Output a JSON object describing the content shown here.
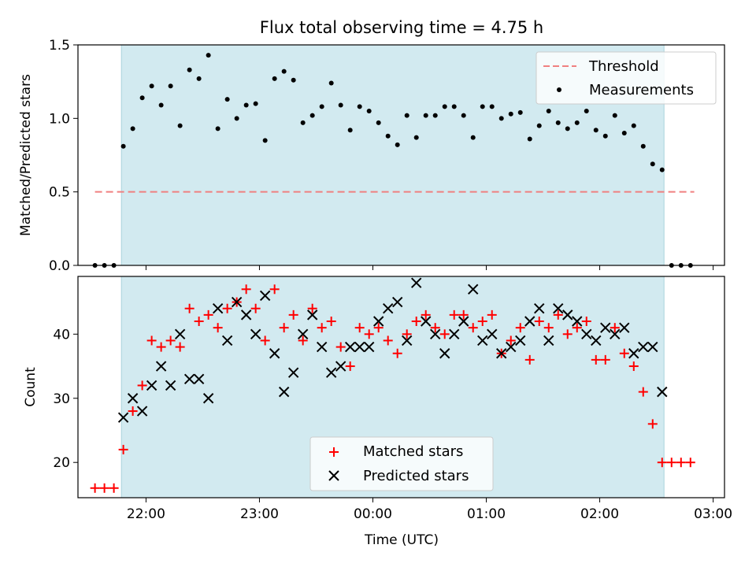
{
  "title": "Flux total observing time = 4.75 h",
  "xlabel": "Time (UTC)",
  "x_ticks": [
    "22:00",
    "23:00",
    "00:00",
    "01:00",
    "02:00",
    "03:00"
  ],
  "colors": {
    "shade": "#d2eaf0",
    "threshold": "#f08080",
    "matched": "#ff0000",
    "predicted": "#000000"
  },
  "chart_data": [
    {
      "type": "scatter",
      "panel": "top",
      "ylabel": "Matched/Predicted stars",
      "ylim": [
        0,
        1.5
      ],
      "y_ticks": [
        "0.0",
        "0.5",
        "1.0",
        "1.5"
      ],
      "x_range_hours": [
        21.4,
        27.1
      ],
      "shaded_span": [
        "21:47",
        "02:34"
      ],
      "legend_position": "upper right",
      "threshold": {
        "name": "Threshold",
        "value": 0.5,
        "x_start": "21:33",
        "x_end": "02:50",
        "style": "dashed"
      },
      "series": [
        {
          "name": "Measurements",
          "x": [
            "21:33",
            "21:38",
            "21:43",
            "21:48",
            "21:53",
            "21:58",
            "22:03",
            "22:08",
            "22:13",
            "22:18",
            "22:23",
            "22:28",
            "22:33",
            "22:38",
            "22:43",
            "22:48",
            "22:53",
            "22:58",
            "23:03",
            "23:08",
            "23:13",
            "23:18",
            "23:23",
            "23:28",
            "23:33",
            "23:38",
            "23:43",
            "23:48",
            "23:53",
            "23:58",
            "00:03",
            "00:08",
            "00:13",
            "00:18",
            "00:23",
            "00:28",
            "00:33",
            "00:38",
            "00:43",
            "00:48",
            "00:53",
            "00:58",
            "01:03",
            "01:08",
            "01:13",
            "01:18",
            "01:23",
            "01:28",
            "01:33",
            "01:38",
            "01:43",
            "01:48",
            "01:53",
            "01:58",
            "02:03",
            "02:08",
            "02:13",
            "02:18",
            "02:23",
            "02:28",
            "02:33",
            "02:38",
            "02:43",
            "02:48"
          ],
          "y": [
            0,
            0,
            0,
            0.81,
            0.93,
            1.14,
            1.22,
            1.09,
            1.22,
            0.95,
            1.33,
            1.27,
            1.43,
            0.93,
            1.13,
            1.0,
            1.09,
            1.1,
            0.85,
            1.27,
            1.32,
            1.26,
            0.97,
            1.02,
            1.08,
            1.24,
            1.09,
            0.92,
            1.08,
            1.05,
            0.97,
            0.88,
            0.82,
            1.02,
            0.87,
            1.02,
            1.02,
            1.08,
            1.08,
            1.02,
            0.87,
            1.08,
            1.08,
            1.0,
            1.03,
            1.04,
            0.86,
            0.95,
            1.05,
            0.97,
            0.93,
            0.97,
            1.05,
            0.92,
            0.88,
            1.02,
            0.9,
            0.95,
            0.81,
            0.69,
            0.65,
            0,
            0,
            0
          ]
        }
      ]
    },
    {
      "type": "scatter",
      "panel": "bottom",
      "ylabel": "Count",
      "ylim": [
        14.5,
        49
      ],
      "y_ticks": [
        "20",
        "30",
        "40"
      ],
      "x_range_hours": [
        21.4,
        27.1
      ],
      "shaded_span": [
        "21:47",
        "02:34"
      ],
      "legend_position": "lower center",
      "series": [
        {
          "name": "Matched stars",
          "marker": "+",
          "x": [
            "21:33",
            "21:38",
            "21:43",
            "21:48",
            "21:53",
            "21:58",
            "22:03",
            "22:08",
            "22:13",
            "22:18",
            "22:23",
            "22:28",
            "22:33",
            "22:38",
            "22:43",
            "22:48",
            "22:53",
            "22:58",
            "23:03",
            "23:08",
            "23:13",
            "23:18",
            "23:23",
            "23:28",
            "23:33",
            "23:38",
            "23:43",
            "23:48",
            "23:53",
            "23:58",
            "00:03",
            "00:08",
            "00:13",
            "00:18",
            "00:23",
            "00:28",
            "00:33",
            "00:38",
            "00:43",
            "00:48",
            "00:53",
            "00:58",
            "01:03",
            "01:08",
            "01:13",
            "01:18",
            "01:23",
            "01:28",
            "01:33",
            "01:38",
            "01:43",
            "01:48",
            "01:53",
            "01:58",
            "02:03",
            "02:08",
            "02:13",
            "02:18",
            "02:23",
            "02:28",
            "02:33",
            "02:38",
            "02:43",
            "02:48"
          ],
          "y": [
            16,
            16,
            16,
            22,
            28,
            32,
            39,
            38,
            39,
            38,
            44,
            42,
            43,
            41,
            44,
            45,
            47,
            44,
            39,
            47,
            41,
            43,
            39,
            44,
            41,
            42,
            38,
            35,
            41,
            40,
            41,
            39,
            37,
            40,
            42,
            43,
            41,
            40,
            43,
            43,
            41,
            42,
            43,
            37,
            39,
            41,
            36,
            42,
            41,
            43,
            40,
            41,
            42,
            36,
            36,
            41,
            37,
            35,
            31,
            26,
            20,
            20,
            20,
            20
          ]
        },
        {
          "name": "Predicted stars",
          "marker": "x",
          "x": [
            "21:48",
            "21:53",
            "21:58",
            "22:03",
            "22:08",
            "22:13",
            "22:18",
            "22:23",
            "22:28",
            "22:33",
            "22:38",
            "22:43",
            "22:48",
            "22:53",
            "22:58",
            "23:03",
            "23:08",
            "23:13",
            "23:18",
            "23:23",
            "23:28",
            "23:33",
            "23:38",
            "23:43",
            "23:48",
            "23:53",
            "23:58",
            "00:03",
            "00:08",
            "00:13",
            "00:18",
            "00:23",
            "00:28",
            "00:33",
            "00:38",
            "00:43",
            "00:48",
            "00:53",
            "00:58",
            "01:03",
            "01:08",
            "01:13",
            "01:18",
            "01:23",
            "01:28",
            "01:33",
            "01:38",
            "01:43",
            "01:48",
            "01:53",
            "01:58",
            "02:03",
            "02:08",
            "02:13",
            "02:18",
            "02:23",
            "02:28",
            "02:33"
          ],
          "y": [
            27,
            30,
            28,
            32,
            35,
            32,
            40,
            33,
            33,
            30,
            44,
            39,
            45,
            43,
            40,
            46,
            37,
            31,
            34,
            40,
            43,
            38,
            34,
            35,
            38,
            38,
            38,
            42,
            44,
            45,
            39,
            48,
            42,
            40,
            37,
            40,
            42,
            47,
            39,
            40,
            37,
            38,
            39,
            42,
            44,
            39,
            44,
            43,
            42,
            40,
            39,
            41,
            40,
            41,
            37,
            38,
            38,
            31
          ]
        }
      ]
    }
  ]
}
